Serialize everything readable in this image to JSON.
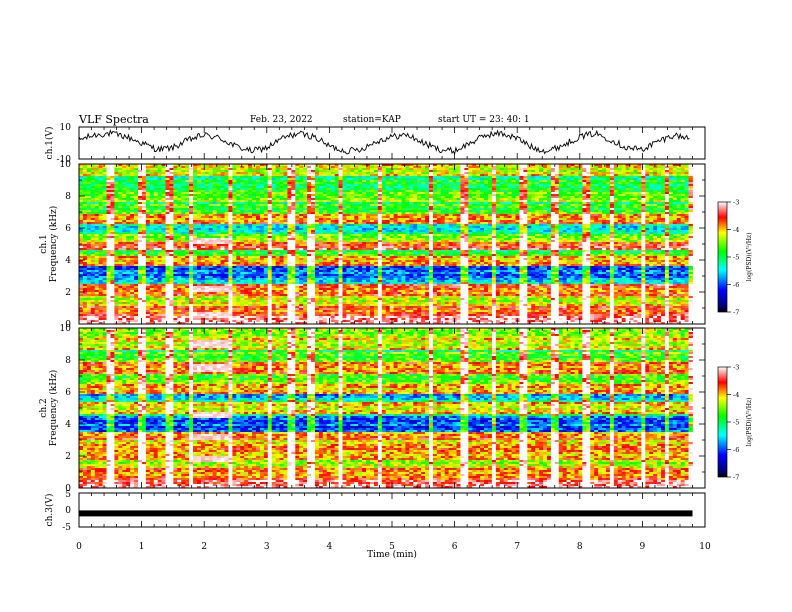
{
  "header": {
    "title": "VLF Spectra",
    "date": "Feb. 23, 2022",
    "station": "station=KAP",
    "start": "start  UT  =   23: 40: 1"
  },
  "chart_data": [
    {
      "type": "line",
      "panel": "ch1-waveform",
      "ylabel": "ch.1(V)",
      "ylim": [
        -10,
        10
      ],
      "y_ticks": [
        "10",
        "-10"
      ],
      "xlim": [
        0,
        10
      ],
      "series": [
        {
          "x": [
            0,
            0.25,
            0.5,
            0.75,
            1.0,
            1.25,
            1.5,
            1.75,
            2.0,
            2.25,
            2.5,
            2.75,
            3.0,
            3.25,
            3.5,
            3.75,
            4.0,
            4.25,
            4.5,
            4.75,
            5.0,
            5.25,
            5.5,
            5.75,
            6.0,
            6.25,
            6.5,
            6.75,
            7.0,
            7.25,
            7.5,
            7.75,
            8.0,
            8.25,
            8.5,
            8.75,
            9.0,
            9.25,
            9.5,
            9.75
          ],
          "values": [
            2,
            5,
            6,
            4,
            0,
            -4,
            -3,
            2,
            5,
            3,
            -2,
            -5,
            -3,
            3,
            6,
            4,
            -2,
            -5,
            -4,
            1,
            4,
            5,
            0,
            -4,
            -5,
            0,
            5,
            6,
            3,
            -3,
            -5,
            -1,
            4,
            6,
            2,
            -3,
            -4,
            1,
            5,
            3
          ]
        }
      ]
    },
    {
      "type": "heatmap",
      "panel": "ch1-spectrogram",
      "ylabel": "Frequency (kHz)",
      "channel_label": "ch.1",
      "ylim": [
        0,
        10
      ],
      "y_ticks": [
        "0",
        "2",
        "4",
        "6",
        "8",
        "10"
      ],
      "xlim": [
        0,
        10
      ],
      "colorbar": {
        "label": "log(PSD)(V²/Hz)",
        "range": [
          -7,
          -3
        ],
        "ticks": [
          "-3",
          "-4",
          "-5",
          "-6",
          "-7"
        ]
      },
      "bands_khz": [
        {
          "freq": 0.3,
          "level": -3.3
        },
        {
          "freq": 0.8,
          "level": -3.8
        },
        {
          "freq": 1.5,
          "level": -4.4
        },
        {
          "freq": 2.1,
          "level": -3.9
        },
        {
          "freq": 2.8,
          "level": -5.7
        },
        {
          "freq": 3.2,
          "level": -6.2
        },
        {
          "freq": 3.5,
          "level": -6.1
        },
        {
          "freq": 4.0,
          "level": -4.1
        },
        {
          "freq": 4.6,
          "level": -5.0
        },
        {
          "freq": 5.0,
          "level": -3.7
        },
        {
          "freq": 5.5,
          "level": -4.6
        },
        {
          "freq": 6.0,
          "level": -5.6
        },
        {
          "freq": 6.6,
          "level": -4.0
        },
        {
          "freq": 7.2,
          "level": -4.9
        },
        {
          "freq": 8.0,
          "level": -4.7
        },
        {
          "freq": 8.6,
          "level": -5.1
        },
        {
          "freq": 9.6,
          "level": -4.4
        }
      ],
      "vertical_lines_min": [
        0.5,
        1.0,
        1.45,
        1.8,
        2.4,
        3.05,
        3.4,
        3.7,
        4.2,
        4.8,
        5.6,
        6.15,
        6.65,
        7.1,
        7.6,
        8.1,
        8.5,
        9.0,
        9.4,
        9.8
      ],
      "event": {
        "t_start": 1.8,
        "t_end": 2.45,
        "freqs_khz": [
          5.2,
          2.2,
          0.6
        ]
      }
    },
    {
      "type": "heatmap",
      "panel": "ch2-spectrogram",
      "ylabel": "Frequency (kHz)",
      "channel_label": "ch.2",
      "ylim": [
        0,
        10
      ],
      "y_ticks": [
        "0",
        "2",
        "4",
        "6",
        "8",
        "10"
      ],
      "xlim": [
        0,
        10
      ],
      "colorbar": {
        "label": "log(PSD)(V²/Hz)",
        "range": [
          -7,
          -3
        ],
        "ticks": [
          "-3",
          "-4",
          "-5",
          "-6",
          "-7"
        ]
      },
      "bands_khz": [
        {
          "freq": 0.3,
          "level": -3.4
        },
        {
          "freq": 0.9,
          "level": -4.0
        },
        {
          "freq": 1.6,
          "level": -4.5
        },
        {
          "freq": 2.1,
          "level": -4.1
        },
        {
          "freq": 2.9,
          "level": -4.2
        },
        {
          "freq": 3.4,
          "level": -4.0
        },
        {
          "freq": 3.9,
          "level": -6.3
        },
        {
          "freq": 4.2,
          "level": -6.1
        },
        {
          "freq": 5.0,
          "level": -4.3
        },
        {
          "freq": 5.8,
          "level": -5.8
        },
        {
          "freq": 6.2,
          "level": -4.1
        },
        {
          "freq": 6.9,
          "level": -4.8
        },
        {
          "freq": 7.5,
          "level": -4.0
        },
        {
          "freq": 8.2,
          "level": -4.8
        },
        {
          "freq": 9.0,
          "level": -4.4
        },
        {
          "freq": 9.7,
          "level": -4.6
        }
      ],
      "vertical_lines_min": [
        0.5,
        1.0,
        1.45,
        1.8,
        2.4,
        3.05,
        3.4,
        3.7,
        4.2,
        4.8,
        5.6,
        6.15,
        6.65,
        7.1,
        7.6,
        8.1,
        8.5,
        9.0,
        9.4,
        9.8
      ],
      "event": {
        "t_start": 1.8,
        "t_end": 2.45,
        "freqs_khz": [
          9.0,
          7.5,
          4.6,
          3.2,
          1.8
        ]
      }
    },
    {
      "type": "line",
      "panel": "ch3",
      "ylabel": "ch.3(V)",
      "ylim": [
        -5,
        5
      ],
      "y_ticks": [
        "5",
        "0",
        "-5"
      ],
      "xlim": [
        0,
        10
      ],
      "xlabel": "Time  (min)",
      "x_ticks": [
        "0",
        "1",
        "2",
        "3",
        "4",
        "5",
        "6",
        "7",
        "8",
        "9",
        "10"
      ],
      "series": [
        {
          "x": [
            0,
            9.8
          ],
          "values": [
            -1,
            -1
          ]
        }
      ]
    }
  ]
}
